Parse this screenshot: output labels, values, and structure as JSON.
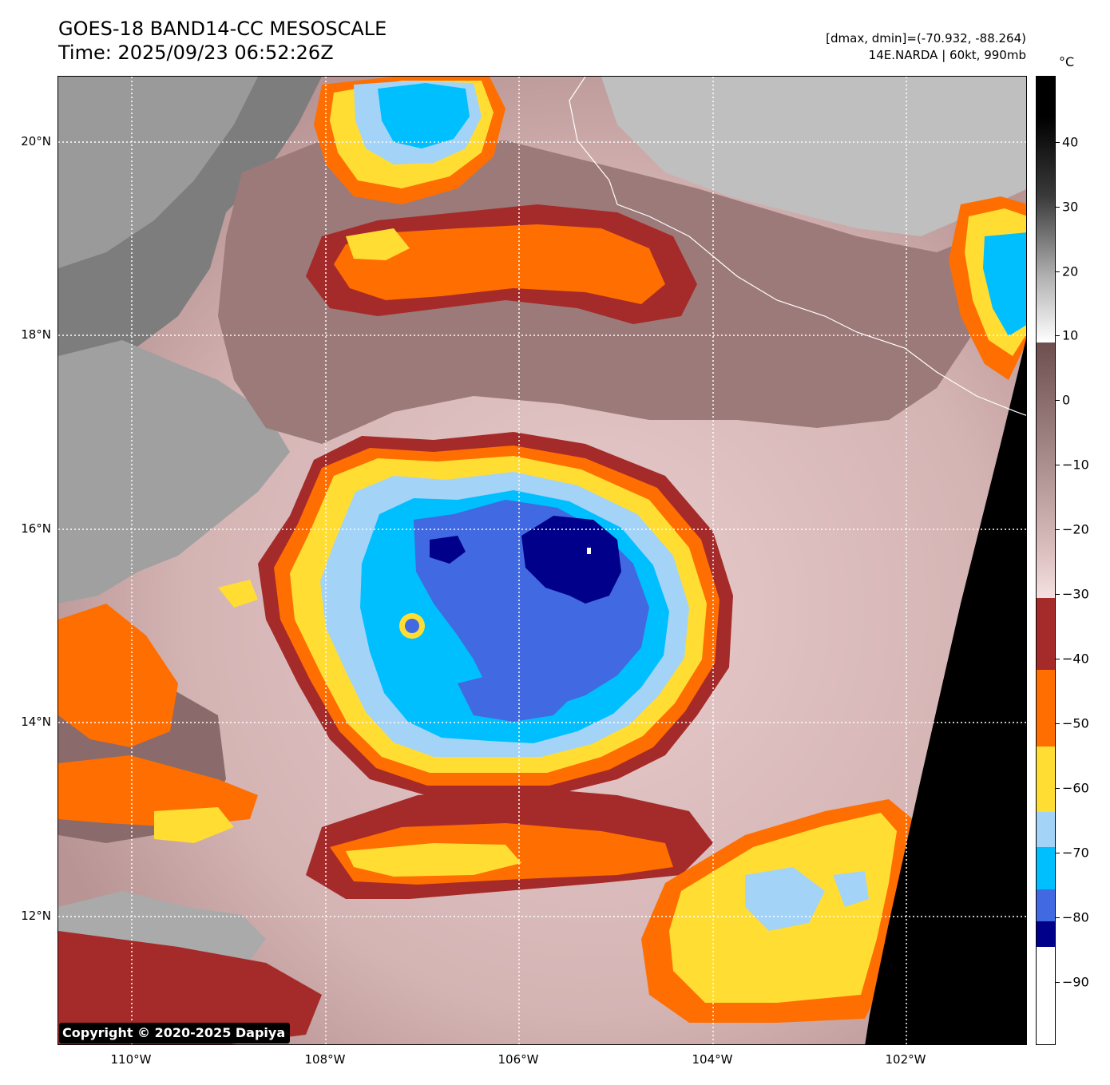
{
  "header": {
    "title_line1": "GOES-18 BAND14-CC MESOSCALE",
    "title_line2": "Time: 2025/09/23 06:52:26Z",
    "range_text": "[dmax, dmin]=(-70.932, -88.264)",
    "storm_text": "14E.NARDA | 60kt, 990mb"
  },
  "map": {
    "lat_labels": [
      "20°N",
      "18°N",
      "16°N",
      "14°N",
      "12°N"
    ],
    "lon_labels": [
      "110°W",
      "108°W",
      "106°W",
      "104°W",
      "102°W"
    ],
    "copyright": "Copyright © 2020-2025 Dapiya"
  },
  "colorbar": {
    "unit": "°C",
    "tick_labels": [
      "40",
      "30",
      "20",
      "10",
      "0",
      "−10",
      "−20",
      "−30",
      "−40",
      "−50",
      "−60",
      "−70",
      "−80",
      "−90"
    ],
    "colors": {
      "cold_navy": "#00008b",
      "royal_blue": "#4169e1",
      "deep_sky": "#00bfff",
      "light_sky": "#a4d3f8",
      "yellow": "#ffdd33",
      "orange": "#ff6e00",
      "brick": "#a52a2a",
      "pink": "#f0d8d8",
      "mauve": "#8a6a6a",
      "gray_white": "#f5f5f5",
      "black": "#000000"
    }
  }
}
